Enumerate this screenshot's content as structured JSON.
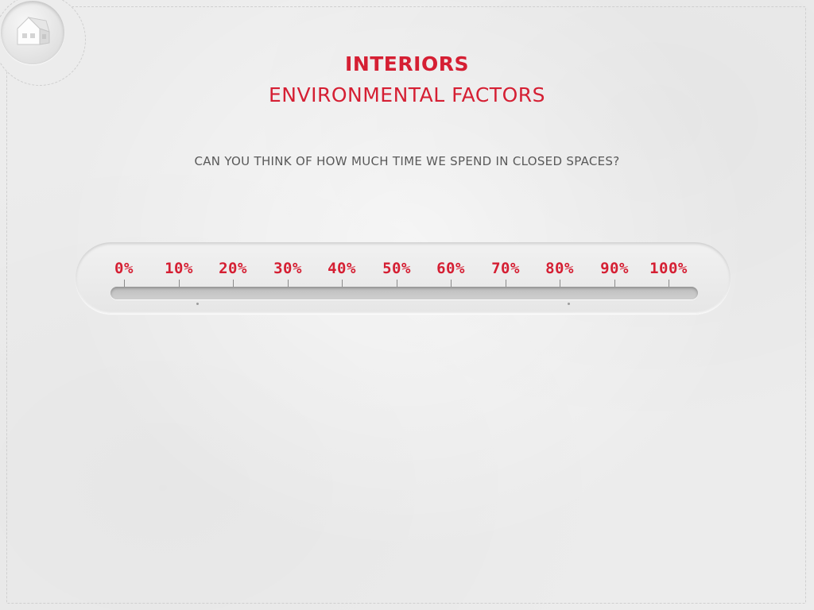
{
  "header": {
    "title": "INTERIORS",
    "subtitle": "ENVIRONMENTAL FACTORS"
  },
  "home_button": {
    "icon": "house-icon"
  },
  "question": "CAN YOU THINK OF HOW MUCH TIME WE SPEND IN CLOSED SPACES?",
  "slider": {
    "labels": [
      "0%",
      "10%",
      "20%",
      "30%",
      "40%",
      "50%",
      "60%",
      "70%",
      "80%",
      "90%",
      "100%"
    ],
    "value_percent": 0
  },
  "colors": {
    "accent": "#d51f33",
    "text": "#595959",
    "background": "#ececec"
  }
}
